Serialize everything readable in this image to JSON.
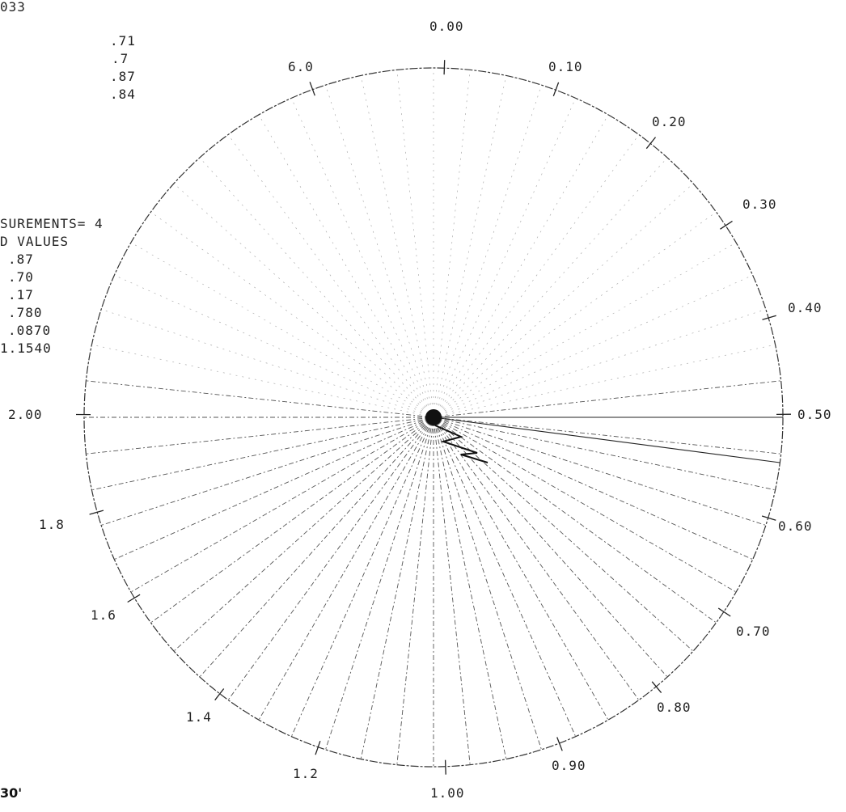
{
  "header_fragment": "033",
  "top_values": [
    ".71",
    ".7",
    ".87",
    ".84"
  ],
  "stats": {
    "measurements_label": "SUREMENTS= 4",
    "values_header": "D VALUES",
    "values": [
      ".87",
      ".70",
      ".17",
      ".780",
      ".0870",
      "1.1540"
    ]
  },
  "footer_fragment": "30'",
  "chart_data": {
    "type": "polar-chart",
    "ticks": [
      {
        "label": "0.00",
        "value": 0.0
      },
      {
        "label": "0.10",
        "value": 0.1
      },
      {
        "label": "0.20",
        "value": 0.2
      },
      {
        "label": "0.30",
        "value": 0.3
      },
      {
        "label": "0.40",
        "value": 0.4
      },
      {
        "label": "0.50",
        "value": 0.5
      },
      {
        "label": "0.60",
        "value": 0.6
      },
      {
        "label": "0.70",
        "value": 0.7
      },
      {
        "label": "0.80",
        "value": 0.8
      },
      {
        "label": "0.90",
        "value": 0.9
      },
      {
        "label": "1.00",
        "value": 1.0
      },
      {
        "label": "1.2",
        "value": 1.2
      },
      {
        "label": "1.4",
        "value": 1.4
      },
      {
        "label": "1.6",
        "value": 1.6
      },
      {
        "label": "1.8",
        "value": 1.8
      },
      {
        "label": "2.00",
        "value": 2.0
      },
      {
        "label": "6.0",
        "value": 6.0
      }
    ],
    "zigzag_marker": "lightning-symbol"
  }
}
